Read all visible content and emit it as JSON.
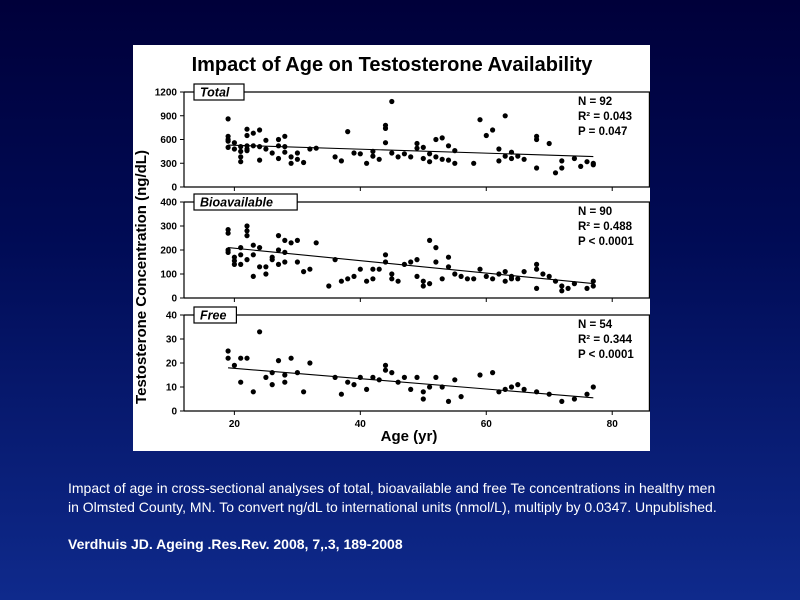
{
  "caption": "Impact of age in cross-sectional analyses of total, bioavailable and free Te concentrations in healthy men in Olmsted County, MN. To convert ng/dL to international units (nmol/L), multiply by 0.0347. Unpublished.",
  "citation": "Verdhuis JD. Ageing .Res.Rev. 2008, 7,.3, 189-2008",
  "colors": {
    "background": "#000b55",
    "panel": "#ffffff",
    "ink": "#000000",
    "text": "#ffffff"
  },
  "chart_data": {
    "type": "scatter",
    "title": "Impact of Age on Testosterone Availability",
    "xlabel": "Age (yr)",
    "ylabel": "Testosterone Concentration (ng/dL)",
    "xlim": [
      12,
      86
    ],
    "x_ticks": [
      20,
      40,
      60,
      80
    ],
    "grid": false,
    "panels": [
      {
        "name": "Total",
        "ylim": [
          0,
          1200
        ],
        "y_ticks": [
          0,
          300,
          600,
          900,
          1200
        ],
        "stats": [
          "N = 92",
          "R² = 0.043",
          "P = 0.047"
        ],
        "trend": [
          [
            19,
            530
          ],
          [
            77,
            385
          ]
        ],
        "points": [
          [
            19,
            860
          ],
          [
            19,
            640
          ],
          [
            19,
            600
          ],
          [
            19,
            500
          ],
          [
            20,
            560
          ],
          [
            20,
            480
          ],
          [
            21,
            510
          ],
          [
            21,
            450
          ],
          [
            21,
            380
          ],
          [
            21,
            320
          ],
          [
            22,
            520
          ],
          [
            22,
            480
          ],
          [
            22,
            460
          ],
          [
            22,
            730
          ],
          [
            22,
            650
          ],
          [
            23,
            520
          ],
          [
            23,
            680
          ],
          [
            24,
            720
          ],
          [
            24,
            510
          ],
          [
            24,
            340
          ],
          [
            25,
            590
          ],
          [
            25,
            480
          ],
          [
            26,
            430
          ],
          [
            27,
            600
          ],
          [
            27,
            520
          ],
          [
            27,
            360
          ],
          [
            28,
            640
          ],
          [
            28,
            510
          ],
          [
            28,
            440
          ],
          [
            29,
            380
          ],
          [
            29,
            300
          ],
          [
            30,
            430
          ],
          [
            30,
            350
          ],
          [
            31,
            310
          ],
          [
            32,
            480
          ],
          [
            33,
            490
          ],
          [
            36,
            380
          ],
          [
            37,
            330
          ],
          [
            38,
            700
          ],
          [
            39,
            430
          ],
          [
            40,
            420
          ],
          [
            41,
            300
          ],
          [
            42,
            450
          ],
          [
            42,
            390
          ],
          [
            43,
            350
          ],
          [
            44,
            780
          ],
          [
            44,
            740
          ],
          [
            44,
            560
          ],
          [
            45,
            1080
          ],
          [
            45,
            430
          ],
          [
            46,
            380
          ],
          [
            47,
            420
          ],
          [
            48,
            380
          ],
          [
            49,
            490
          ],
          [
            49,
            550
          ],
          [
            50,
            500
          ],
          [
            50,
            360
          ],
          [
            51,
            420
          ],
          [
            51,
            320
          ],
          [
            52,
            600
          ],
          [
            52,
            380
          ],
          [
            53,
            620
          ],
          [
            53,
            350
          ],
          [
            54,
            520
          ],
          [
            54,
            340
          ],
          [
            55,
            460
          ],
          [
            55,
            300
          ],
          [
            58,
            300
          ],
          [
            59,
            850
          ],
          [
            60,
            650
          ],
          [
            61,
            720
          ],
          [
            62,
            330
          ],
          [
            62,
            480
          ],
          [
            63,
            900
          ],
          [
            63,
            390
          ],
          [
            64,
            440
          ],
          [
            64,
            360
          ],
          [
            65,
            390
          ],
          [
            66,
            350
          ],
          [
            68,
            640
          ],
          [
            68,
            600
          ],
          [
            68,
            240
          ],
          [
            70,
            550
          ],
          [
            71,
            180
          ],
          [
            72,
            240
          ],
          [
            72,
            330
          ],
          [
            74,
            360
          ],
          [
            75,
            260
          ],
          [
            76,
            320
          ],
          [
            77,
            300
          ],
          [
            77,
            280
          ],
          [
            19,
            580
          ]
        ]
      },
      {
        "name": "Bioavailable",
        "ylim": [
          0,
          400
        ],
        "y_ticks": [
          0,
          100,
          200,
          300,
          400
        ],
        "stats": [
          "N = 90",
          "R² = 0.488",
          "P < 0.0001"
        ],
        "trend": [
          [
            19,
            210
          ],
          [
            77,
            60
          ]
        ],
        "points": [
          [
            19,
            285
          ],
          [
            19,
            270
          ],
          [
            19,
            200
          ],
          [
            19,
            190
          ],
          [
            20,
            170
          ],
          [
            20,
            155
          ],
          [
            20,
            140
          ],
          [
            21,
            210
          ],
          [
            21,
            180
          ],
          [
            21,
            140
          ],
          [
            22,
            300
          ],
          [
            22,
            280
          ],
          [
            22,
            260
          ],
          [
            23,
            220
          ],
          [
            23,
            180
          ],
          [
            24,
            210
          ],
          [
            24,
            130
          ],
          [
            25,
            100
          ],
          [
            25,
            130
          ],
          [
            26,
            170
          ],
          [
            26,
            160
          ],
          [
            27,
            260
          ],
          [
            27,
            200
          ],
          [
            27,
            140
          ],
          [
            28,
            240
          ],
          [
            28,
            150
          ],
          [
            29,
            230
          ],
          [
            30,
            240
          ],
          [
            30,
            150
          ],
          [
            31,
            110
          ],
          [
            32,
            120
          ],
          [
            33,
            230
          ],
          [
            36,
            160
          ],
          [
            37,
            70
          ],
          [
            38,
            80
          ],
          [
            39,
            90
          ],
          [
            40,
            120
          ],
          [
            41,
            70
          ],
          [
            42,
            120
          ],
          [
            42,
            80
          ],
          [
            43,
            120
          ],
          [
            44,
            180
          ],
          [
            44,
            150
          ],
          [
            45,
            100
          ],
          [
            45,
            80
          ],
          [
            46,
            70
          ],
          [
            47,
            140
          ],
          [
            48,
            150
          ],
          [
            49,
            90
          ],
          [
            49,
            160
          ],
          [
            50,
            70
          ],
          [
            50,
            50
          ],
          [
            51,
            240
          ],
          [
            51,
            60
          ],
          [
            52,
            210
          ],
          [
            52,
            150
          ],
          [
            53,
            80
          ],
          [
            54,
            170
          ],
          [
            54,
            130
          ],
          [
            55,
            100
          ],
          [
            57,
            80
          ],
          [
            59,
            120
          ],
          [
            60,
            90
          ],
          [
            61,
            80
          ],
          [
            62,
            100
          ],
          [
            63,
            110
          ],
          [
            63,
            70
          ],
          [
            64,
            80
          ],
          [
            64,
            90
          ],
          [
            65,
            80
          ],
          [
            66,
            110
          ],
          [
            68,
            140
          ],
          [
            68,
            120
          ],
          [
            68,
            40
          ],
          [
            69,
            100
          ],
          [
            70,
            90
          ],
          [
            71,
            70
          ],
          [
            72,
            30
          ],
          [
            72,
            50
          ],
          [
            73,
            40
          ],
          [
            74,
            60
          ],
          [
            76,
            40
          ],
          [
            77,
            70
          ],
          [
            77,
            50
          ],
          [
            58,
            80
          ],
          [
            56,
            90
          ],
          [
            35,
            50
          ],
          [
            22,
            160
          ],
          [
            23,
            90
          ],
          [
            28,
            190
          ]
        ]
      },
      {
        "name": "Free",
        "ylim": [
          0,
          40
        ],
        "y_ticks": [
          0,
          10,
          20,
          30,
          40
        ],
        "stats": [
          "N = 54",
          "R² = 0.344",
          "P < 0.0001"
        ],
        "trend": [
          [
            19,
            18
          ],
          [
            77,
            5.5
          ]
        ],
        "points": [
          [
            19,
            25
          ],
          [
            19,
            22
          ],
          [
            20,
            19
          ],
          [
            21,
            12
          ],
          [
            21,
            22
          ],
          [
            22,
            22
          ],
          [
            23,
            8
          ],
          [
            24,
            33
          ],
          [
            25,
            14
          ],
          [
            26,
            11
          ],
          [
            26,
            16
          ],
          [
            27,
            21
          ],
          [
            28,
            15
          ],
          [
            28,
            12
          ],
          [
            29,
            22
          ],
          [
            30,
            16
          ],
          [
            31,
            8
          ],
          [
            32,
            20
          ],
          [
            36,
            14
          ],
          [
            37,
            7
          ],
          [
            38,
            12
          ],
          [
            39,
            11
          ],
          [
            40,
            14
          ],
          [
            41,
            9
          ],
          [
            42,
            14
          ],
          [
            43,
            13
          ],
          [
            44,
            19
          ],
          [
            44,
            17
          ],
          [
            45,
            16
          ],
          [
            46,
            12
          ],
          [
            47,
            14
          ],
          [
            48,
            9
          ],
          [
            49,
            14
          ],
          [
            50,
            5
          ],
          [
            50,
            8
          ],
          [
            51,
            10
          ],
          [
            52,
            14
          ],
          [
            53,
            10
          ],
          [
            54,
            4
          ],
          [
            55,
            13
          ],
          [
            56,
            6
          ],
          [
            59,
            15
          ],
          [
            61,
            16
          ],
          [
            62,
            8
          ],
          [
            63,
            9
          ],
          [
            64,
            10
          ],
          [
            65,
            11
          ],
          [
            66,
            9
          ],
          [
            68,
            8
          ],
          [
            70,
            7
          ],
          [
            72,
            4
          ],
          [
            74,
            5
          ],
          [
            76,
            7
          ],
          [
            77,
            10
          ]
        ]
      }
    ]
  }
}
